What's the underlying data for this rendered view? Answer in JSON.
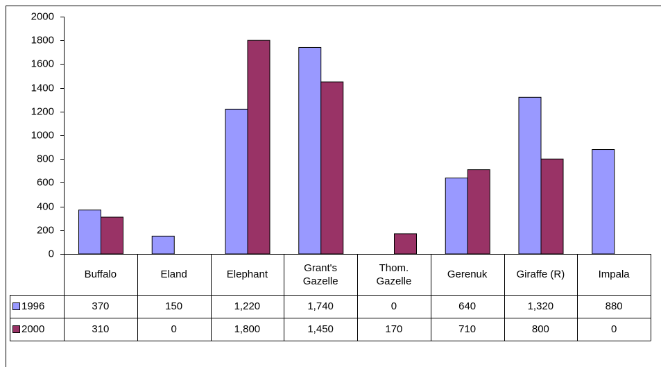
{
  "chart_data": {
    "type": "bar",
    "categories": [
      "Buffalo",
      "Eland",
      "Elephant",
      "Grant's Gazelle",
      "Thom. Gazelle",
      "Gerenuk",
      "Giraffe (R)",
      "Impala"
    ],
    "series": [
      {
        "name": "1996",
        "color": "#9999ff",
        "values": [
          370,
          150,
          1220,
          1740,
          0,
          640,
          1320,
          880
        ],
        "value_labels": [
          "370",
          "150",
          "1,220",
          "1,740",
          "0",
          "640",
          "1,320",
          "880"
        ]
      },
      {
        "name": "2000",
        "color": "#993366",
        "values": [
          310,
          0,
          1800,
          1450,
          170,
          710,
          800,
          0
        ],
        "value_labels": [
          "310",
          "0",
          "1,800",
          "1,450",
          "170",
          "710",
          "800",
          "0"
        ]
      }
    ],
    "ylim": [
      0,
      2000
    ],
    "yticks": [
      0,
      200,
      400,
      600,
      800,
      1000,
      1200,
      1400,
      1600,
      1800,
      2000
    ],
    "grid": false
  }
}
